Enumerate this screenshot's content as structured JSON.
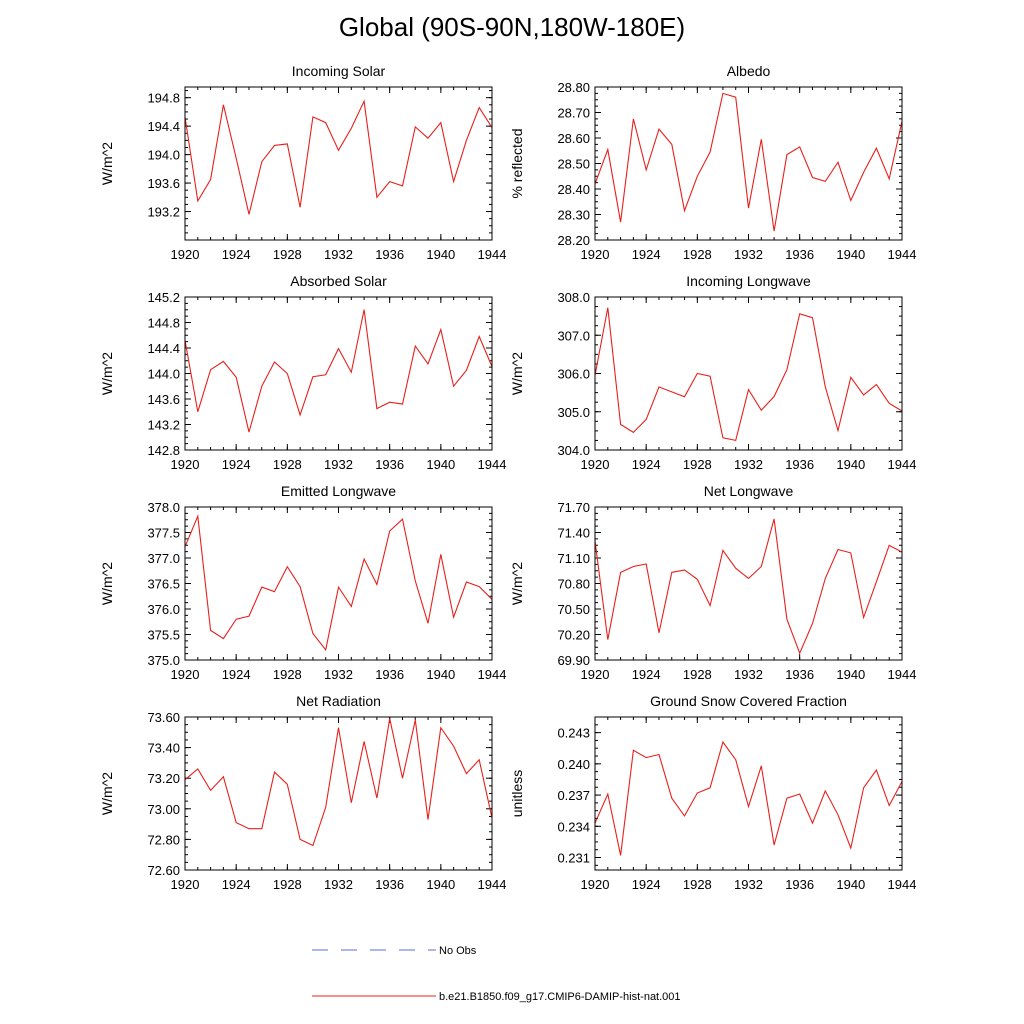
{
  "title": "Global (90S-90N,180W-180E)",
  "colors": {
    "series": "#e8201c",
    "obs": "#5b6cd6",
    "axis": "#000000"
  },
  "legend": {
    "obs_label": "No Obs",
    "run_label": "b.e21.B1850.f09_g17.CMIP6-DAMIP-hist-nat.001"
  },
  "chart_data": [
    {
      "type": "line",
      "title": "Incoming Solar",
      "ylabel": "W/m^2",
      "xlim": [
        1920,
        1944
      ],
      "ylim": [
        192.8,
        194.95
      ],
      "yticks": [
        193.2,
        193.6,
        194.0,
        194.4,
        194.8
      ],
      "ytick_labels": [
        "193.2",
        "193.6",
        "194.0",
        "194.4",
        "194.8"
      ],
      "xticks": [
        1920,
        1924,
        1928,
        1932,
        1936,
        1940,
        1944
      ],
      "xtick_labels": [
        "1920",
        "1924",
        "1928",
        "1932",
        "1936",
        "1940",
        "1944"
      ],
      "x": [
        1920,
        1921,
        1922,
        1923,
        1924,
        1925,
        1926,
        1927,
        1928,
        1929,
        1930,
        1931,
        1932,
        1933,
        1934,
        1935,
        1936,
        1937,
        1938,
        1939,
        1940,
        1941,
        1942,
        1943,
        1944
      ],
      "values": [
        194.53,
        193.35,
        193.65,
        194.7,
        193.95,
        193.16,
        193.9,
        194.13,
        194.15,
        193.26,
        194.53,
        194.45,
        194.06,
        194.37,
        194.75,
        193.4,
        193.62,
        193.56,
        194.39,
        194.23,
        194.45,
        193.62,
        194.2,
        194.66,
        194.38
      ]
    },
    {
      "type": "line",
      "title": "Albedo",
      "ylabel": "% reflected",
      "xlim": [
        1920,
        1944
      ],
      "ylim": [
        28.2,
        28.8
      ],
      "yticks": [
        28.2,
        28.3,
        28.4,
        28.5,
        28.6,
        28.7,
        28.8
      ],
      "ytick_labels": [
        "28.20",
        "28.30",
        "28.40",
        "28.50",
        "28.60",
        "28.70",
        "28.80"
      ],
      "xticks": [
        1920,
        1924,
        1928,
        1932,
        1936,
        1940,
        1944
      ],
      "xtick_labels": [
        "1920",
        "1924",
        "1928",
        "1932",
        "1936",
        "1940",
        "1944"
      ],
      "x": [
        1920,
        1921,
        1922,
        1923,
        1924,
        1925,
        1926,
        1927,
        1928,
        1929,
        1930,
        1931,
        1932,
        1933,
        1934,
        1935,
        1936,
        1937,
        1938,
        1939,
        1940,
        1941,
        1942,
        1943,
        1944
      ],
      "values": [
        28.42,
        28.555,
        28.27,
        28.675,
        28.475,
        28.635,
        28.575,
        28.315,
        28.45,
        28.545,
        28.775,
        28.76,
        28.325,
        28.595,
        28.235,
        28.535,
        28.565,
        28.445,
        28.43,
        28.505,
        28.355,
        28.465,
        28.56,
        28.44,
        28.665
      ]
    },
    {
      "type": "line",
      "title": "Absorbed Solar",
      "ylabel": "W/m^2",
      "xlim": [
        1920,
        1944
      ],
      "ylim": [
        142.8,
        145.2
      ],
      "yticks": [
        142.8,
        143.2,
        143.6,
        144.0,
        144.4,
        144.8,
        145.2
      ],
      "ytick_labels": [
        "142.8",
        "143.2",
        "143.6",
        "144.0",
        "144.4",
        "144.8",
        "145.2"
      ],
      "xticks": [
        1920,
        1924,
        1928,
        1932,
        1936,
        1940,
        1944
      ],
      "xtick_labels": [
        "1920",
        "1924",
        "1928",
        "1932",
        "1936",
        "1940",
        "1944"
      ],
      "x": [
        1920,
        1921,
        1922,
        1923,
        1924,
        1925,
        1926,
        1927,
        1928,
        1929,
        1930,
        1931,
        1932,
        1933,
        1934,
        1935,
        1936,
        1937,
        1938,
        1939,
        1940,
        1941,
        1942,
        1943,
        1944
      ],
      "values": [
        144.52,
        143.4,
        144.06,
        144.19,
        143.94,
        143.08,
        143.8,
        144.18,
        144.0,
        143.35,
        143.95,
        143.98,
        144.39,
        144.02,
        145.0,
        143.45,
        143.55,
        143.52,
        144.43,
        144.15,
        144.69,
        143.8,
        144.05,
        144.58,
        144.11
      ]
    },
    {
      "type": "line",
      "title": "Incoming Longwave",
      "ylabel": "W/m^2",
      "xlim": [
        1920,
        1944
      ],
      "ylim": [
        304.0,
        308.0
      ],
      "yticks": [
        304.0,
        305.0,
        306.0,
        307.0,
        308.0
      ],
      "ytick_labels": [
        "304.0",
        "305.0",
        "306.0",
        "307.0",
        "308.0"
      ],
      "xticks": [
        1920,
        1924,
        1928,
        1932,
        1936,
        1940,
        1944
      ],
      "xtick_labels": [
        "1920",
        "1924",
        "1928",
        "1932",
        "1936",
        "1940",
        "1944"
      ],
      "x": [
        1920,
        1921,
        1922,
        1923,
        1924,
        1925,
        1926,
        1927,
        1928,
        1929,
        1930,
        1931,
        1932,
        1933,
        1934,
        1935,
        1936,
        1937,
        1938,
        1939,
        1940,
        1941,
        1942,
        1943,
        1944
      ],
      "values": [
        305.95,
        307.72,
        304.67,
        304.46,
        304.8,
        305.65,
        305.52,
        305.39,
        306.0,
        305.93,
        304.32,
        304.25,
        305.58,
        305.04,
        305.4,
        306.1,
        307.56,
        307.46,
        305.65,
        304.51,
        305.9,
        305.44,
        305.71,
        305.22,
        305.02
      ]
    },
    {
      "type": "line",
      "title": "Emitted Longwave",
      "ylabel": "W/m^2",
      "xlim": [
        1920,
        1944
      ],
      "ylim": [
        375.0,
        378.0
      ],
      "yticks": [
        375.0,
        375.5,
        376.0,
        376.5,
        377.0,
        377.5,
        378.0
      ],
      "ytick_labels": [
        "375.0",
        "375.5",
        "376.0",
        "376.5",
        "377.0",
        "377.5",
        "378.0"
      ],
      "xticks": [
        1920,
        1924,
        1928,
        1932,
        1936,
        1940,
        1944
      ],
      "xtick_labels": [
        "1920",
        "1924",
        "1928",
        "1932",
        "1936",
        "1940",
        "1944"
      ],
      "x": [
        1920,
        1921,
        1922,
        1923,
        1924,
        1925,
        1926,
        1927,
        1928,
        1929,
        1930,
        1931,
        1932,
        1933,
        1934,
        1935,
        1936,
        1937,
        1938,
        1939,
        1940,
        1941,
        1942,
        1943,
        1944
      ],
      "values": [
        377.22,
        377.82,
        375.58,
        375.42,
        375.8,
        375.86,
        376.43,
        376.34,
        376.83,
        376.44,
        375.52,
        375.2,
        376.43,
        376.05,
        376.98,
        376.48,
        377.53,
        377.76,
        376.55,
        375.72,
        377.07,
        375.84,
        376.53,
        376.44,
        376.19
      ]
    },
    {
      "type": "line",
      "title": "Net Longwave",
      "ylabel": "W/m^2",
      "xlim": [
        1920,
        1944
      ],
      "ylim": [
        69.9,
        71.7
      ],
      "yticks": [
        69.9,
        70.2,
        70.5,
        70.8,
        71.1,
        71.4,
        71.7
      ],
      "ytick_labels": [
        "69.90",
        "70.20",
        "70.50",
        "70.80",
        "71.10",
        "71.40",
        "71.70"
      ],
      "xticks": [
        1920,
        1924,
        1928,
        1932,
        1936,
        1940,
        1944
      ],
      "xtick_labels": [
        "1920",
        "1924",
        "1928",
        "1932",
        "1936",
        "1940",
        "1944"
      ],
      "x": [
        1920,
        1921,
        1922,
        1923,
        1924,
        1925,
        1926,
        1927,
        1928,
        1929,
        1930,
        1931,
        1932,
        1933,
        1934,
        1935,
        1936,
        1937,
        1938,
        1939,
        1940,
        1941,
        1942,
        1943,
        1944
      ],
      "values": [
        71.3,
        70.14,
        70.93,
        71.0,
        71.03,
        70.22,
        70.93,
        70.96,
        70.85,
        70.54,
        71.19,
        70.98,
        70.86,
        71.0,
        71.56,
        70.38,
        69.98,
        70.33,
        70.86,
        71.2,
        71.16,
        70.4,
        70.82,
        71.25,
        71.17
      ]
    },
    {
      "type": "line",
      "title": "Net Radiation",
      "ylabel": "W/m^2",
      "xlim": [
        1920,
        1944
      ],
      "ylim": [
        72.6,
        73.6
      ],
      "yticks": [
        72.6,
        72.8,
        73.0,
        73.2,
        73.4,
        73.6
      ],
      "ytick_labels": [
        "72.60",
        "72.80",
        "73.00",
        "73.20",
        "73.40",
        "73.60"
      ],
      "xticks": [
        1920,
        1924,
        1928,
        1932,
        1936,
        1940,
        1944
      ],
      "xtick_labels": [
        "1920",
        "1924",
        "1928",
        "1932",
        "1936",
        "1940",
        "1944"
      ],
      "x": [
        1920,
        1921,
        1922,
        1923,
        1924,
        1925,
        1926,
        1927,
        1928,
        1929,
        1930,
        1931,
        1932,
        1933,
        1934,
        1935,
        1936,
        1937,
        1938,
        1939,
        1940,
        1941,
        1942,
        1943,
        1944
      ],
      "values": [
        73.19,
        73.26,
        73.12,
        73.21,
        72.91,
        72.87,
        72.87,
        73.24,
        73.16,
        72.8,
        72.76,
        73.01,
        73.53,
        73.04,
        73.44,
        73.07,
        73.59,
        73.2,
        73.58,
        72.93,
        73.53,
        73.41,
        73.23,
        73.32,
        72.94
      ]
    },
    {
      "type": "line",
      "title": "Ground Snow Covered Fraction",
      "ylabel": "unitless",
      "xlim": [
        1920,
        1944
      ],
      "ylim": [
        0.2298,
        0.2445
      ],
      "yticks": [
        0.231,
        0.234,
        0.237,
        0.24,
        0.243
      ],
      "ytick_labels": [
        "0.231",
        "0.234",
        "0.237",
        "0.240",
        "0.243"
      ],
      "xticks": [
        1920,
        1924,
        1928,
        1932,
        1936,
        1940,
        1944
      ],
      "xtick_labels": [
        "1920",
        "1924",
        "1928",
        "1932",
        "1936",
        "1940",
        "1944"
      ],
      "x": [
        1920,
        1921,
        1922,
        1923,
        1924,
        1925,
        1926,
        1927,
        1928,
        1929,
        1930,
        1931,
        1932,
        1933,
        1934,
        1935,
        1936,
        1937,
        1938,
        1939,
        1940,
        1941,
        1942,
        1943,
        1944
      ],
      "values": [
        0.2343,
        0.2371,
        0.2312,
        0.2413,
        0.2406,
        0.2409,
        0.2367,
        0.235,
        0.2372,
        0.2377,
        0.2421,
        0.2404,
        0.2359,
        0.2398,
        0.2322,
        0.2367,
        0.2371,
        0.2343,
        0.2374,
        0.2351,
        0.2319,
        0.2377,
        0.2394,
        0.236,
        0.2383
      ]
    }
  ]
}
